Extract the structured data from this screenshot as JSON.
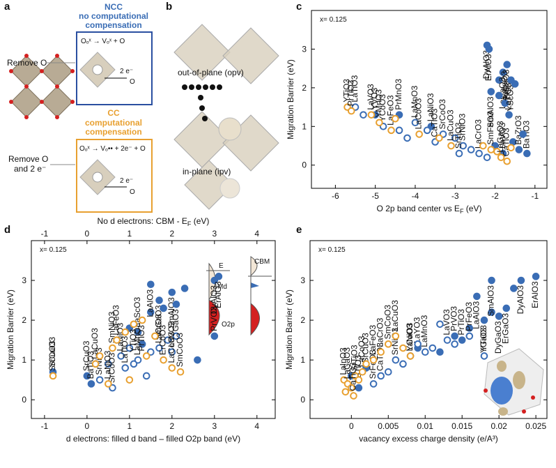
{
  "figure": {
    "panel_a": {
      "label": "a",
      "ncc_title": "NCC",
      "ncc_lines": [
        "no computational",
        "compensation"
      ],
      "ncc_equation": "Oₒˣ → Vₒˣ + O",
      "cc_title": "CC",
      "cc_lines": [
        "computational",
        "compensation"
      ],
      "cc_equation": "Oₒˣ → Vₒ•• + 2e⁻ + O",
      "remove_o": "Remove O",
      "remove_o2e": [
        "Remove O",
        "and 2 e⁻"
      ],
      "electrons": "2 e⁻",
      "oxygen": "O"
    },
    "panel_b": {
      "label": "b",
      "out_of_plane": "out-of-plane (opv)",
      "in_plane": "in-plane (ipv)"
    },
    "panel_d_inset": {
      "ef": "E",
      "md": "Md",
      "o2p": "O2p",
      "cbm": "CBM"
    }
  },
  "chart_data": [
    {
      "type": "scatter",
      "panel_label": "c",
      "annotation": "x= 0.125",
      "xlabel": "O 2p band center vs E",
      "xlabel_sub": "F",
      "xlabel_unit": " (eV)",
      "ylabel": "Migration Barrier (eV)",
      "xlim": [
        -6.6,
        -0.7
      ],
      "ylim": [
        -0.6,
        4.0
      ],
      "xticks": [
        -6,
        -5,
        -4,
        -3,
        -2,
        -1
      ],
      "yticks": [
        0,
        1,
        2,
        3
      ],
      "series": [
        {
          "color": "#3a6db5",
          "filled": true,
          "x": [
            -2.2,
            -2.15,
            -1.9,
            -1.8,
            -1.7,
            -1.6,
            -1.5,
            -1.75,
            -1.9,
            -2.1,
            -1.65,
            -1.55,
            -1.4,
            -1.2,
            -1.3,
            -2.0,
            -1.8,
            -3.6,
            -5.0,
            -4.4
          ],
          "values": [
            3.1,
            3.0,
            2.2,
            2.4,
            2.6,
            2.2,
            2.1,
            1.6,
            1.8,
            1.9,
            1.3,
            0.6,
            0.4,
            0.3,
            0.8,
            0.5,
            0.3,
            1.0,
            1.3,
            1.3
          ],
          "labels": [
            "DyAlO3",
            "ErAlO3",
            null,
            "LaGaO3",
            "PrGaO3",
            "YScO3",
            null,
            "LaInO3",
            null,
            "SmAlO3",
            "LaTiO3",
            null,
            "BaZrO3",
            "BaTiO3",
            null,
            null,
            "LaVO3",
            "LaNiO3",
            "YVO3",
            "PrMnO3"
          ]
        },
        {
          "color": "#3a6db5",
          "filled": false,
          "x": [
            -5.5,
            -5.3,
            -4.8,
            -4.4,
            -4.0,
            -3.7,
            -3.3,
            -3.0,
            -2.8,
            -2.6,
            -2.4,
            -2.2,
            -3.5,
            -4.2,
            -2.9
          ],
          "values": [
            1.5,
            1.3,
            1.0,
            0.9,
            1.1,
            0.9,
            0.8,
            0.7,
            0.5,
            0.4,
            0.3,
            0.2,
            0.6,
            0.7,
            0.3
          ],
          "labels": [
            "LaTiO3",
            null,
            "YCoO3",
            null,
            "LaMnO3",
            null,
            "SrCoO3",
            null,
            "SrNiO3",
            null,
            "LaCrO3",
            null,
            "CaTiO3",
            null,
            "SrTiO3"
          ]
        },
        {
          "color": "#e8a030",
          "filled": false,
          "x": [
            -5.7,
            -5.6,
            -5.1,
            -4.9,
            -4.6,
            -4.5,
            -3.9,
            -3.4,
            -3.1,
            -2.3,
            -2.1,
            -1.95,
            -1.85,
            -1.7,
            -1.6
          ],
          "values": [
            1.5,
            1.4,
            1.3,
            1.1,
            0.9,
            1.2,
            0.8,
            0.7,
            0.5,
            0.5,
            0.4,
            0.35,
            0.2,
            0.1,
            0.45
          ],
          "labels": [
            "YTiO3",
            "PrTiO3",
            "LaVO3",
            "YMnO3",
            "LaFeO3",
            null,
            "LaCoO3",
            null,
            "LaCuO3",
            null,
            "SmFeO3",
            null,
            "LaGaO3",
            "CaTiO3",
            null
          ]
        }
      ]
    },
    {
      "type": "scatter",
      "panel_label": "d",
      "annotation": "x= 0.125",
      "xlabel": "d electrons: filled d band – filled O2p band (eV)",
      "ylabel": "Migration Barrier (eV)",
      "x2label": "No d electrons: CBM - E",
      "x2label_sub": "F",
      "x2label_unit": " (eV)",
      "xlim": [
        -1.31,
        4.43
      ],
      "ylim": [
        -0.47,
        4.0
      ],
      "xticks": [
        -1,
        0,
        1,
        2,
        3,
        4
      ],
      "yticks": [
        0,
        1,
        2,
        3
      ],
      "x2lim": [
        -1.31,
        4.43
      ],
      "x2ticks": [
        -1,
        0,
        1,
        2,
        3,
        4
      ],
      "series": [
        {
          "color": "#3a6db5",
          "filled": true,
          "x": [
            0.0,
            0.1,
            1.0,
            1.2,
            1.5,
            1.7,
            1.8,
            2.0,
            2.1,
            2.3,
            1.5,
            3.0,
            3.1,
            3.0,
            2.6,
            -0.8,
            1.3
          ],
          "values": [
            0.6,
            0.4,
            1.8,
            1.7,
            2.2,
            2.5,
            2.3,
            2.7,
            2.4,
            2.8,
            2.9,
            3.0,
            3.1,
            1.6,
            1.0,
            0.7,
            1.4
          ],
          "labels": [
            "SrCuO3",
            "BaTiO3",
            null,
            "LaScO3",
            null,
            "SmGaO3",
            null,
            "SmAlO3",
            "YGaO3",
            null,
            "LaAlO3",
            "DyAlO3",
            "ErAlO3",
            "PrVO3",
            null,
            "SrCuO3",
            null
          ]
        },
        {
          "color": "#3a6db5",
          "filled": false,
          "x": [
            0.3,
            0.5,
            0.8,
            1.0,
            1.2,
            1.5,
            1.7,
            1.9,
            2.1,
            0.9,
            1.4,
            0.6,
            1.1,
            2.0
          ],
          "values": [
            0.5,
            0.9,
            1.1,
            1.3,
            1.0,
            1.2,
            1.3,
            1.5,
            1.6,
            0.8,
            0.6,
            0.3,
            0.9,
            1.2
          ],
          "labels": [
            "SrNiO3",
            null,
            "LaNiO3",
            null,
            "LaMnO3",
            null,
            "LaCrO3",
            null,
            null,
            "LaTiO3",
            null,
            "SrCoO3",
            null,
            "LaVO3"
          ]
        },
        {
          "color": "#e8a030",
          "filled": false,
          "x": [
            -0.8,
            0.2,
            0.3,
            0.6,
            0.7,
            0.9,
            1.1,
            1.3,
            1.6,
            1.8,
            2.0,
            1.0,
            0.5,
            1.4,
            2.2
          ],
          "values": [
            0.6,
            0.9,
            1.1,
            1.3,
            1.5,
            1.7,
            1.9,
            2.0,
            1.6,
            1.0,
            0.8,
            0.5,
            0.4,
            1.1,
            0.7
          ],
          "labels": [
            "SrCuO3",
            "LaCuO3",
            null,
            "SmNiO3",
            "LaFeO3",
            null,
            "YTiO3",
            "PrTiO3",
            null,
            "ErCoO3",
            "LaCoO3",
            null,
            "LaNiO3",
            null,
            "SmCoO3"
          ]
        }
      ]
    },
    {
      "type": "scatter",
      "panel_label": "e",
      "annotation": "x= 0.125",
      "xlabel": "vacancy excess charge density (e/A³)",
      "ylabel": "Migration Barrier (eV)",
      "xlim": [
        -0.0056,
        0.0265
      ],
      "ylim": [
        -0.47,
        4.0
      ],
      "xticks": [
        0,
        0.005,
        0.01,
        0.015,
        0.02,
        0.025
      ],
      "yticks": [
        0,
        1,
        2,
        3
      ],
      "series": [
        {
          "color": "#3a6db5",
          "filled": true,
          "x": [
            0.012,
            0.014,
            0.016,
            0.018,
            0.019,
            0.02,
            0.021,
            0.022,
            0.023,
            0.025,
            0.019,
            0.017,
            0.015,
            0.009,
            0.001,
            0.0,
            0.002
          ],
          "values": [
            1.2,
            1.6,
            1.8,
            2.0,
            2.2,
            2.1,
            2.3,
            2.8,
            3.0,
            3.1,
            3.0,
            2.6,
            1.5,
            1.3,
            0.3,
            0.6,
            0.8
          ],
          "labels": [
            null,
            "PrVO3",
            null,
            "YGaO3",
            null,
            "DyGaO3",
            "ErGaO3",
            null,
            "DyAlO3",
            "ErAlO3",
            "SmAlO3",
            "LaAlO3",
            "PrTiO3",
            "LaYO3",
            "BaTiO3",
            null,
            "SrCuO3"
          ]
        },
        {
          "color": "#3a6db5",
          "filled": false,
          "x": [
            0.006,
            0.007,
            0.008,
            0.009,
            0.01,
            0.011,
            0.013,
            0.014,
            0.016,
            0.012,
            0.018,
            0.004,
            0.005,
            0.003
          ],
          "values": [
            1.0,
            0.9,
            1.1,
            1.4,
            1.2,
            1.3,
            1.5,
            1.4,
            1.6,
            1.9,
            1.1,
            0.6,
            0.7,
            0.4
          ],
          "labels": [
            "SrNiO3",
            null,
            "LaNiO3",
            null,
            "LaMnO3",
            null,
            "LaVO3",
            null,
            "PrFeO3",
            null,
            "YTiO3",
            "CaTiO3",
            null,
            "SrFeO3"
          ]
        },
        {
          "color": "#e8a030",
          "filled": false,
          "x": [
            -0.001,
            -0.0005,
            0.0,
            0.0005,
            0.001,
            0.0015,
            0.002,
            0.003,
            0.004,
            0.005,
            0.006,
            0.007,
            0.008,
            -0.0008,
            0.0003
          ],
          "values": [
            0.5,
            0.4,
            0.3,
            0.6,
            0.5,
            0.7,
            0.9,
            1.0,
            1.2,
            1.4,
            1.6,
            1.3,
            1.1,
            0.2,
            0.1
          ],
          "labels": [
            "LaInO3",
            "LaGaO3",
            null,
            "SrTiO3",
            null,
            "LaCoO3",
            null,
            "LaFeO3",
            "LaCrO3",
            "SmCoO3",
            "LaCuO3",
            null,
            "YCoO3",
            null,
            "CaTiO3"
          ]
        }
      ]
    }
  ]
}
